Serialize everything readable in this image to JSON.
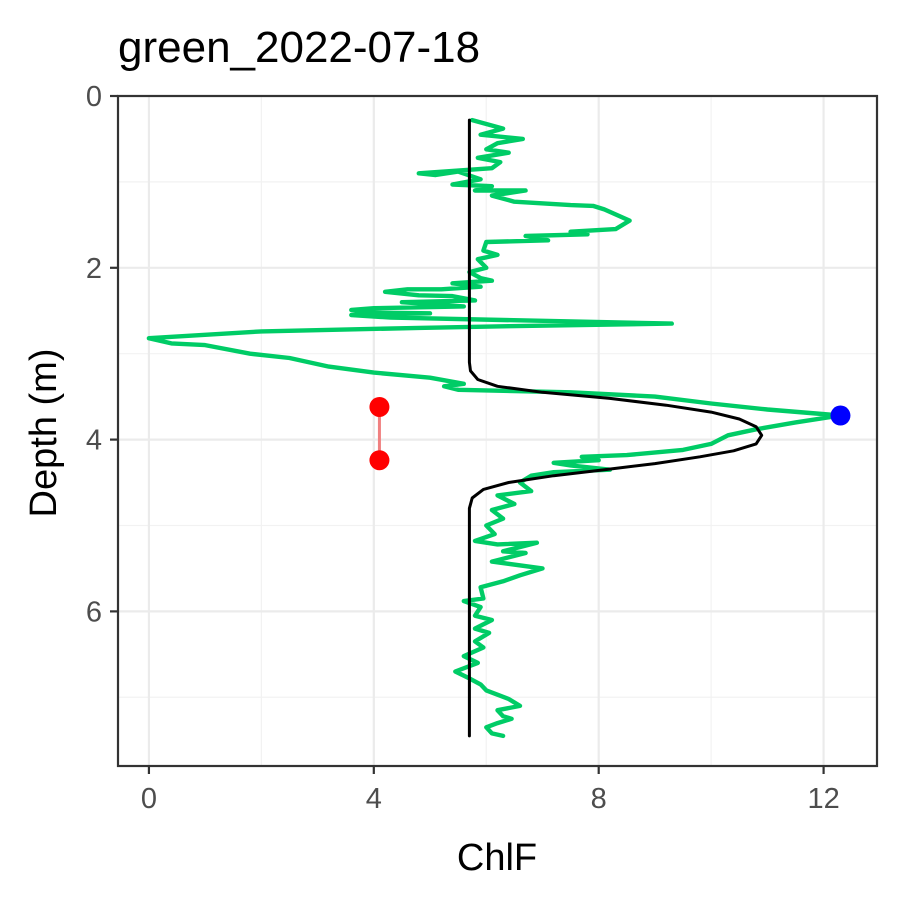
{
  "chart_data": {
    "type": "line",
    "title": "green_2022-07-18",
    "xlabel": "ChlF",
    "ylabel": "Depth (m)",
    "xlim": [
      -0.55,
      12.95
    ],
    "ylim": [
      0,
      7.8
    ],
    "y_reversed": true,
    "x_ticks": [
      0,
      4,
      8,
      12
    ],
    "y_ticks": [
      0,
      2,
      4,
      6
    ],
    "x_tick_labels": [
      "0",
      "4",
      "8",
      "12"
    ],
    "y_tick_labels": [
      "0",
      "2",
      "4",
      "6"
    ],
    "grid": true,
    "series": [
      {
        "color": "#00cc66",
        "kind": "line",
        "points": [
          [
            5.75,
            0.28
          ],
          [
            6.3,
            0.38
          ],
          [
            5.9,
            0.45
          ],
          [
            6.65,
            0.5
          ],
          [
            6.2,
            0.55
          ],
          [
            6.0,
            0.62
          ],
          [
            6.4,
            0.66
          ],
          [
            5.85,
            0.72
          ],
          [
            6.25,
            0.77
          ],
          [
            6.1,
            0.84
          ],
          [
            4.8,
            0.9
          ],
          [
            5.1,
            0.92
          ],
          [
            5.5,
            0.88
          ],
          [
            5.9,
            0.97
          ],
          [
            5.4,
            1.03
          ],
          [
            6.1,
            1.05
          ],
          [
            5.8,
            1.1
          ],
          [
            6.7,
            1.1
          ],
          [
            6.1,
            1.16
          ],
          [
            6.5,
            1.23
          ],
          [
            7.5,
            1.27
          ],
          [
            7.9,
            1.28
          ],
          [
            8.1,
            1.32
          ],
          [
            8.55,
            1.45
          ],
          [
            8.3,
            1.55
          ],
          [
            7.5,
            1.58
          ],
          [
            7.8,
            1.61
          ],
          [
            6.7,
            1.63
          ],
          [
            7.1,
            1.68
          ],
          [
            6.0,
            1.7
          ],
          [
            5.95,
            1.8
          ],
          [
            6.2,
            1.85
          ],
          [
            5.85,
            1.9
          ],
          [
            6.0,
            2.0
          ],
          [
            5.7,
            2.05
          ],
          [
            5.9,
            2.12
          ],
          [
            6.1,
            2.15
          ],
          [
            5.4,
            2.18
          ],
          [
            5.9,
            2.22
          ],
          [
            5.2,
            2.25
          ],
          [
            4.6,
            2.25
          ],
          [
            4.2,
            2.28
          ],
          [
            4.8,
            2.32
          ],
          [
            5.4,
            2.33
          ],
          [
            5.8,
            2.38
          ],
          [
            4.5,
            2.4
          ],
          [
            5.6,
            2.45
          ],
          [
            4.0,
            2.47
          ],
          [
            3.6,
            2.49
          ],
          [
            3.9,
            2.52
          ],
          [
            5.0,
            2.53
          ],
          [
            3.6,
            2.55
          ],
          [
            4.3,
            2.58
          ],
          [
            9.3,
            2.65
          ],
          [
            6.4,
            2.68
          ],
          [
            4.8,
            2.7
          ],
          [
            2.0,
            2.74
          ],
          [
            0.0,
            2.82
          ],
          [
            0.4,
            2.88
          ],
          [
            1.0,
            2.9
          ],
          [
            1.8,
            3.0
          ],
          [
            2.5,
            3.05
          ],
          [
            3.2,
            3.15
          ],
          [
            4.0,
            3.22
          ],
          [
            5.0,
            3.28
          ],
          [
            5.6,
            3.35
          ],
          [
            5.25,
            3.38
          ],
          [
            5.5,
            3.42
          ],
          [
            7.5,
            3.45
          ],
          [
            9.0,
            3.5
          ],
          [
            10.0,
            3.58
          ],
          [
            11.0,
            3.65
          ],
          [
            12.3,
            3.72
          ],
          [
            11.5,
            3.8
          ],
          [
            10.8,
            3.88
          ],
          [
            10.3,
            3.95
          ],
          [
            10.0,
            4.05
          ],
          [
            9.5,
            4.12
          ],
          [
            8.5,
            4.18
          ],
          [
            7.7,
            4.2
          ],
          [
            8.0,
            4.24
          ],
          [
            7.2,
            4.27
          ],
          [
            7.5,
            4.3
          ],
          [
            8.2,
            4.35
          ],
          [
            7.2,
            4.38
          ],
          [
            6.8,
            4.42
          ],
          [
            6.6,
            4.5
          ],
          [
            6.8,
            4.6
          ],
          [
            6.2,
            4.65
          ],
          [
            6.5,
            4.75
          ],
          [
            6.1,
            4.82
          ],
          [
            6.3,
            4.92
          ],
          [
            6.0,
            5.0
          ],
          [
            6.15,
            5.1
          ],
          [
            5.8,
            5.18
          ],
          [
            6.2,
            5.22
          ],
          [
            6.9,
            5.2
          ],
          [
            6.3,
            5.3
          ],
          [
            6.7,
            5.32
          ],
          [
            6.1,
            5.42
          ],
          [
            7.0,
            5.5
          ],
          [
            6.6,
            5.58
          ],
          [
            6.3,
            5.65
          ],
          [
            5.9,
            5.72
          ],
          [
            5.95,
            5.85
          ],
          [
            5.6,
            5.88
          ],
          [
            5.9,
            5.95
          ],
          [
            5.8,
            6.05
          ],
          [
            6.1,
            6.1
          ],
          [
            5.8,
            6.2
          ],
          [
            6.05,
            6.25
          ],
          [
            5.8,
            6.35
          ],
          [
            5.95,
            6.42
          ],
          [
            5.6,
            6.52
          ],
          [
            5.85,
            6.6
          ],
          [
            5.45,
            6.7
          ],
          [
            5.7,
            6.78
          ],
          [
            5.9,
            6.85
          ],
          [
            6.0,
            6.92
          ],
          [
            6.2,
            6.97
          ],
          [
            6.4,
            7.02
          ],
          [
            6.6,
            7.1
          ],
          [
            6.2,
            7.15
          ],
          [
            6.3,
            7.22
          ],
          [
            6.45,
            7.25
          ],
          [
            6.2,
            7.3
          ],
          [
            6.0,
            7.35
          ],
          [
            6.1,
            7.42
          ],
          [
            6.3,
            7.45
          ]
        ]
      },
      {
        "color": "#000000",
        "kind": "line",
        "points": [
          [
            5.7,
            0.28
          ],
          [
            5.7,
            3.1
          ],
          [
            5.72,
            3.2
          ],
          [
            5.85,
            3.3
          ],
          [
            6.2,
            3.38
          ],
          [
            7.0,
            3.45
          ],
          [
            8.2,
            3.52
          ],
          [
            9.2,
            3.6
          ],
          [
            10.0,
            3.68
          ],
          [
            10.5,
            3.76
          ],
          [
            10.8,
            3.85
          ],
          [
            10.9,
            3.95
          ],
          [
            10.8,
            4.05
          ],
          [
            10.4,
            4.13
          ],
          [
            9.8,
            4.2
          ],
          [
            9.0,
            4.28
          ],
          [
            8.1,
            4.35
          ],
          [
            7.2,
            4.42
          ],
          [
            6.4,
            4.5
          ],
          [
            5.95,
            4.58
          ],
          [
            5.75,
            4.68
          ],
          [
            5.7,
            4.8
          ],
          [
            5.7,
            7.45
          ]
        ]
      },
      {
        "color": "#ff0000",
        "kind": "points-with-segment",
        "segment_color": "#f08080",
        "points": [
          [
            4.1,
            3.62
          ],
          [
            4.1,
            4.24
          ]
        ]
      },
      {
        "color": "#0000ff",
        "kind": "point",
        "points": [
          [
            12.3,
            3.72
          ]
        ]
      }
    ]
  }
}
